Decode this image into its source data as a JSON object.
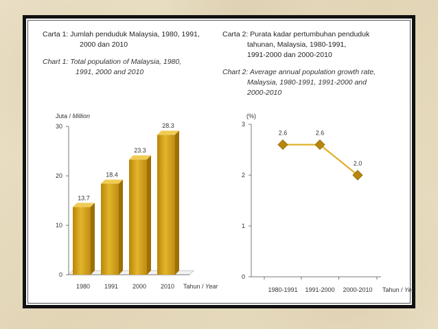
{
  "chart_data": [
    {
      "type": "bar",
      "title_ms": [
        "Carta 1: Jumlah penduduk Malaysia, 1980, 1991,",
        "2000 dan 2010"
      ],
      "title_en": [
        "Chart 1: Total population of Malaysia, 1980,",
        "1991, 2000 and 2010"
      ],
      "ylabel": "Juta / Million",
      "xlabel": "Tahun / Year",
      "categories": [
        "1980",
        "1991",
        "2000",
        "2010"
      ],
      "values": [
        13.7,
        18.4,
        23.3,
        28.3
      ],
      "value_labels": [
        "13.7",
        "18.4",
        "23.3",
        "28.3"
      ],
      "yticks": [
        "0",
        "10",
        "20",
        "30"
      ],
      "ylim": [
        0,
        30
      ],
      "color": "#d4a21c",
      "grid": false
    },
    {
      "type": "line",
      "title_ms": [
        "Carta 2: Purata kadar pertumbuhan penduduk",
        "tahunan, Malaysia, 1980-1991,",
        "1991-2000 dan 2000-2010"
      ],
      "title_en": [
        "Chart 2: Average annual population growth rate,",
        "Malaysia, 1980-1991, 1991-2000 and",
        "2000-2010"
      ],
      "ylabel": "(%)",
      "xlabel": "Tahun / Year",
      "categories": [
        "1980-1991",
        "1991-2000",
        "2000-2010"
      ],
      "values": [
        2.6,
        2.6,
        2.0
      ],
      "value_labels": [
        "2.6",
        "2.6",
        "2.0"
      ],
      "yticks": [
        "0",
        "1",
        "2",
        "3"
      ],
      "ylim": [
        0,
        3
      ],
      "color": "#d4a21c",
      "marker": "diamond",
      "grid": false
    }
  ]
}
